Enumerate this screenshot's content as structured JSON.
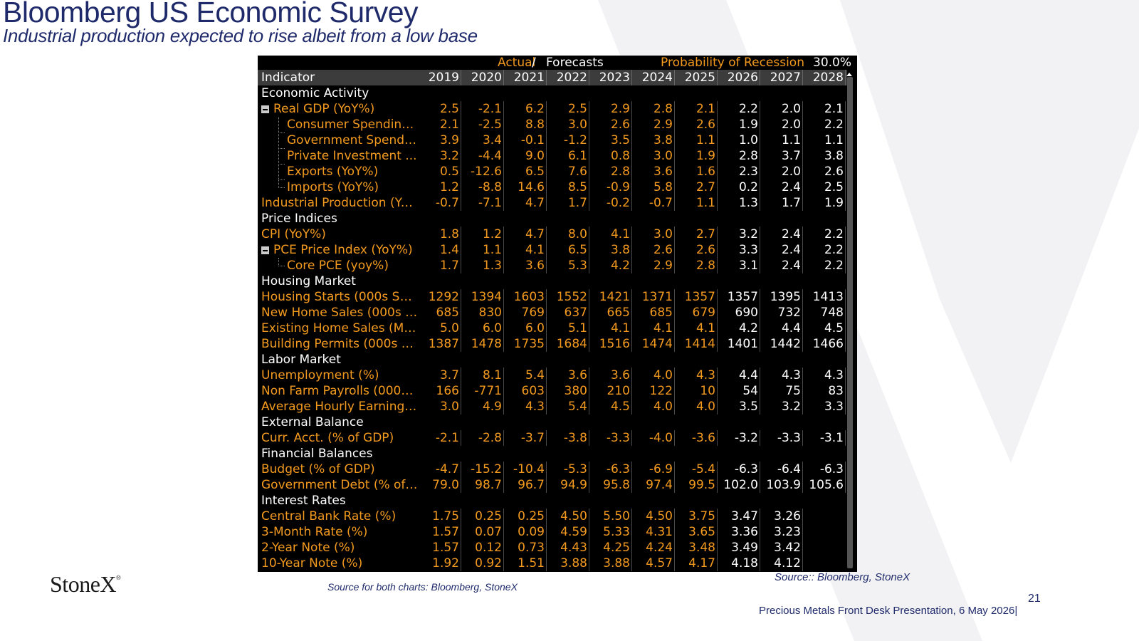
{
  "title": "Bloomberg US Economic Survey",
  "subtitle": "Industrial production expected to rise albeit from a low base",
  "terminal": {
    "actual_label": "Actual",
    "separator": "/",
    "forecasts_label": "Forecasts",
    "recession_label": "Probability of Recession",
    "recession_value": "30.0%",
    "columns": [
      "Indicator",
      "2019",
      "2020",
      "2021",
      "2022",
      "2023",
      "2024",
      "2025",
      "2026",
      "2027",
      "2028"
    ]
  },
  "rows": [
    {
      "kind": "section",
      "label": "Economic Activity"
    },
    {
      "kind": "item",
      "label": "Real GDP (YoY%)",
      "collapse": true,
      "values": [
        "2.5",
        "-2.1",
        "6.2",
        "2.5",
        "2.9",
        "2.8",
        "2.1",
        "2.2",
        "2.0",
        "2.1"
      ]
    },
    {
      "kind": "item",
      "label": "Consumer Spending ...",
      "child": true,
      "values": [
        "2.1",
        "-2.5",
        "8.8",
        "3.0",
        "2.6",
        "2.9",
        "2.6",
        "1.9",
        "2.0",
        "2.2"
      ]
    },
    {
      "kind": "item",
      "label": "Government Spendin...",
      "child": true,
      "values": [
        "3.9",
        "3.4",
        "-0.1",
        "-1.2",
        "3.5",
        "3.8",
        "1.1",
        "1.0",
        "1.1",
        "1.1"
      ]
    },
    {
      "kind": "item",
      "label": "Private Investment ...",
      "child": true,
      "values": [
        "3.2",
        "-4.4",
        "9.0",
        "6.1",
        "0.8",
        "3.0",
        "1.9",
        "2.8",
        "3.7",
        "3.8"
      ]
    },
    {
      "kind": "item",
      "label": "Exports (YoY%)",
      "child": true,
      "values": [
        "0.5",
        "-12.6",
        "6.5",
        "7.6",
        "2.8",
        "3.6",
        "1.6",
        "2.3",
        "2.0",
        "2.6"
      ]
    },
    {
      "kind": "item",
      "label": "Imports (YoY%)",
      "child": true,
      "last": true,
      "values": [
        "1.2",
        "-8.8",
        "14.6",
        "8.5",
        "-0.9",
        "5.8",
        "2.7",
        "0.2",
        "2.4",
        "2.5"
      ]
    },
    {
      "kind": "item",
      "label": "Industrial Production (Yo...",
      "values": [
        "-0.7",
        "-7.1",
        "4.7",
        "1.7",
        "-0.2",
        "-0.7",
        "1.1",
        "1.3",
        "1.7",
        "1.9"
      ]
    },
    {
      "kind": "section",
      "label": "Price Indices"
    },
    {
      "kind": "item",
      "label": "CPI (YoY%)",
      "values": [
        "1.8",
        "1.2",
        "4.7",
        "8.0",
        "4.1",
        "3.0",
        "2.7",
        "3.2",
        "2.4",
        "2.2"
      ]
    },
    {
      "kind": "item",
      "label": "PCE Price Index (YoY%)",
      "collapse": true,
      "values": [
        "1.4",
        "1.1",
        "4.1",
        "6.5",
        "3.8",
        "2.6",
        "2.6",
        "3.3",
        "2.4",
        "2.2"
      ]
    },
    {
      "kind": "item",
      "label": "Core PCE (yoy%)",
      "child": true,
      "last": true,
      "values": [
        "1.7",
        "1.3",
        "3.6",
        "5.3",
        "4.2",
        "2.9",
        "2.8",
        "3.1",
        "2.4",
        "2.2"
      ]
    },
    {
      "kind": "section",
      "label": "Housing Market"
    },
    {
      "kind": "item",
      "label": "Housing Starts (000s SAA...",
      "values": [
        "1292",
        "1394",
        "1603",
        "1552",
        "1421",
        "1371",
        "1357",
        "1357",
        "1395",
        "1413"
      ]
    },
    {
      "kind": "item",
      "label": "New Home Sales (000s S...",
      "values": [
        "685",
        "830",
        "769",
        "637",
        "665",
        "685",
        "679",
        "690",
        "732",
        "748"
      ]
    },
    {
      "kind": "item",
      "label": "Existing Home Sales (Mln...",
      "values": [
        "5.0",
        "6.0",
        "6.0",
        "5.1",
        "4.1",
        "4.1",
        "4.1",
        "4.2",
        "4.4",
        "4.5"
      ]
    },
    {
      "kind": "item",
      "label": "Building Permits (000s S...",
      "values": [
        "1387",
        "1478",
        "1735",
        "1684",
        "1516",
        "1474",
        "1414",
        "1401",
        "1442",
        "1466"
      ]
    },
    {
      "kind": "section",
      "label": "Labor Market"
    },
    {
      "kind": "item",
      "label": "Unemployment (%)",
      "values": [
        "3.7",
        "8.1",
        "5.4",
        "3.6",
        "3.6",
        "4.0",
        "4.3",
        "4.4",
        "4.3",
        "4.3"
      ]
    },
    {
      "kind": "item",
      "label": "Non Farm Payrolls (000s...",
      "values": [
        "166",
        "-771",
        "603",
        "380",
        "210",
        "122",
        "10",
        "54",
        "75",
        "83"
      ]
    },
    {
      "kind": "item",
      "label": "Average Hourly Earnings ...",
      "values": [
        "3.0",
        "4.9",
        "4.3",
        "5.4",
        "4.5",
        "4.0",
        "4.0",
        "3.5",
        "3.2",
        "3.3"
      ]
    },
    {
      "kind": "section",
      "label": "External Balance"
    },
    {
      "kind": "item",
      "label": "Curr. Acct. (% of GDP)",
      "values": [
        "-2.1",
        "-2.8",
        "-3.7",
        "-3.8",
        "-3.3",
        "-4.0",
        "-3.6",
        "-3.2",
        "-3.3",
        "-3.1"
      ]
    },
    {
      "kind": "section",
      "label": "Financial Balances"
    },
    {
      "kind": "item",
      "label": "Budget (% of GDP)",
      "values": [
        "-4.7",
        "-15.2",
        "-10.4",
        "-5.3",
        "-6.3",
        "-6.9",
        "-5.4",
        "-6.3",
        "-6.4",
        "-6.3"
      ]
    },
    {
      "kind": "item",
      "label": "Government Debt (% of G...",
      "values": [
        "79.0",
        "98.7",
        "96.7",
        "94.9",
        "95.8",
        "97.4",
        "99.5",
        "102.0",
        "103.9",
        "105.6"
      ]
    },
    {
      "kind": "section",
      "label": "Interest Rates"
    },
    {
      "kind": "item",
      "label": "Central Bank Rate (%)",
      "values": [
        "1.75",
        "0.25",
        "0.25",
        "4.50",
        "5.50",
        "4.50",
        "3.75",
        "3.47",
        "3.26",
        ""
      ]
    },
    {
      "kind": "item",
      "label": "3-Month Rate (%)",
      "values": [
        "1.57",
        "0.07",
        "0.09",
        "4.59",
        "5.33",
        "4.31",
        "3.65",
        "3.36",
        "3.23",
        ""
      ]
    },
    {
      "kind": "item",
      "label": "2-Year Note (%)",
      "values": [
        "1.57",
        "0.12",
        "0.73",
        "4.43",
        "4.25",
        "4.24",
        "3.48",
        "3.49",
        "3.42",
        ""
      ]
    },
    {
      "kind": "item",
      "label": "10-Year Note (%)",
      "values": [
        "1.92",
        "0.92",
        "1.51",
        "3.88",
        "3.88",
        "4.57",
        "4.17",
        "4.18",
        "4.12",
        ""
      ]
    }
  ],
  "colors": {
    "orange": "#f39a1f",
    "navy": "#1f2a6b",
    "terminal_bg": "#000000"
  },
  "logo": {
    "text": "StoneX",
    "mark": "®"
  },
  "source_left": "Source for both charts: Bloomberg, StoneX",
  "source_right": "Source:: Bloomberg, StoneX",
  "page_number": "21",
  "footer": "Precious Metals Front Desk Presentation, 6 May 2026|"
}
